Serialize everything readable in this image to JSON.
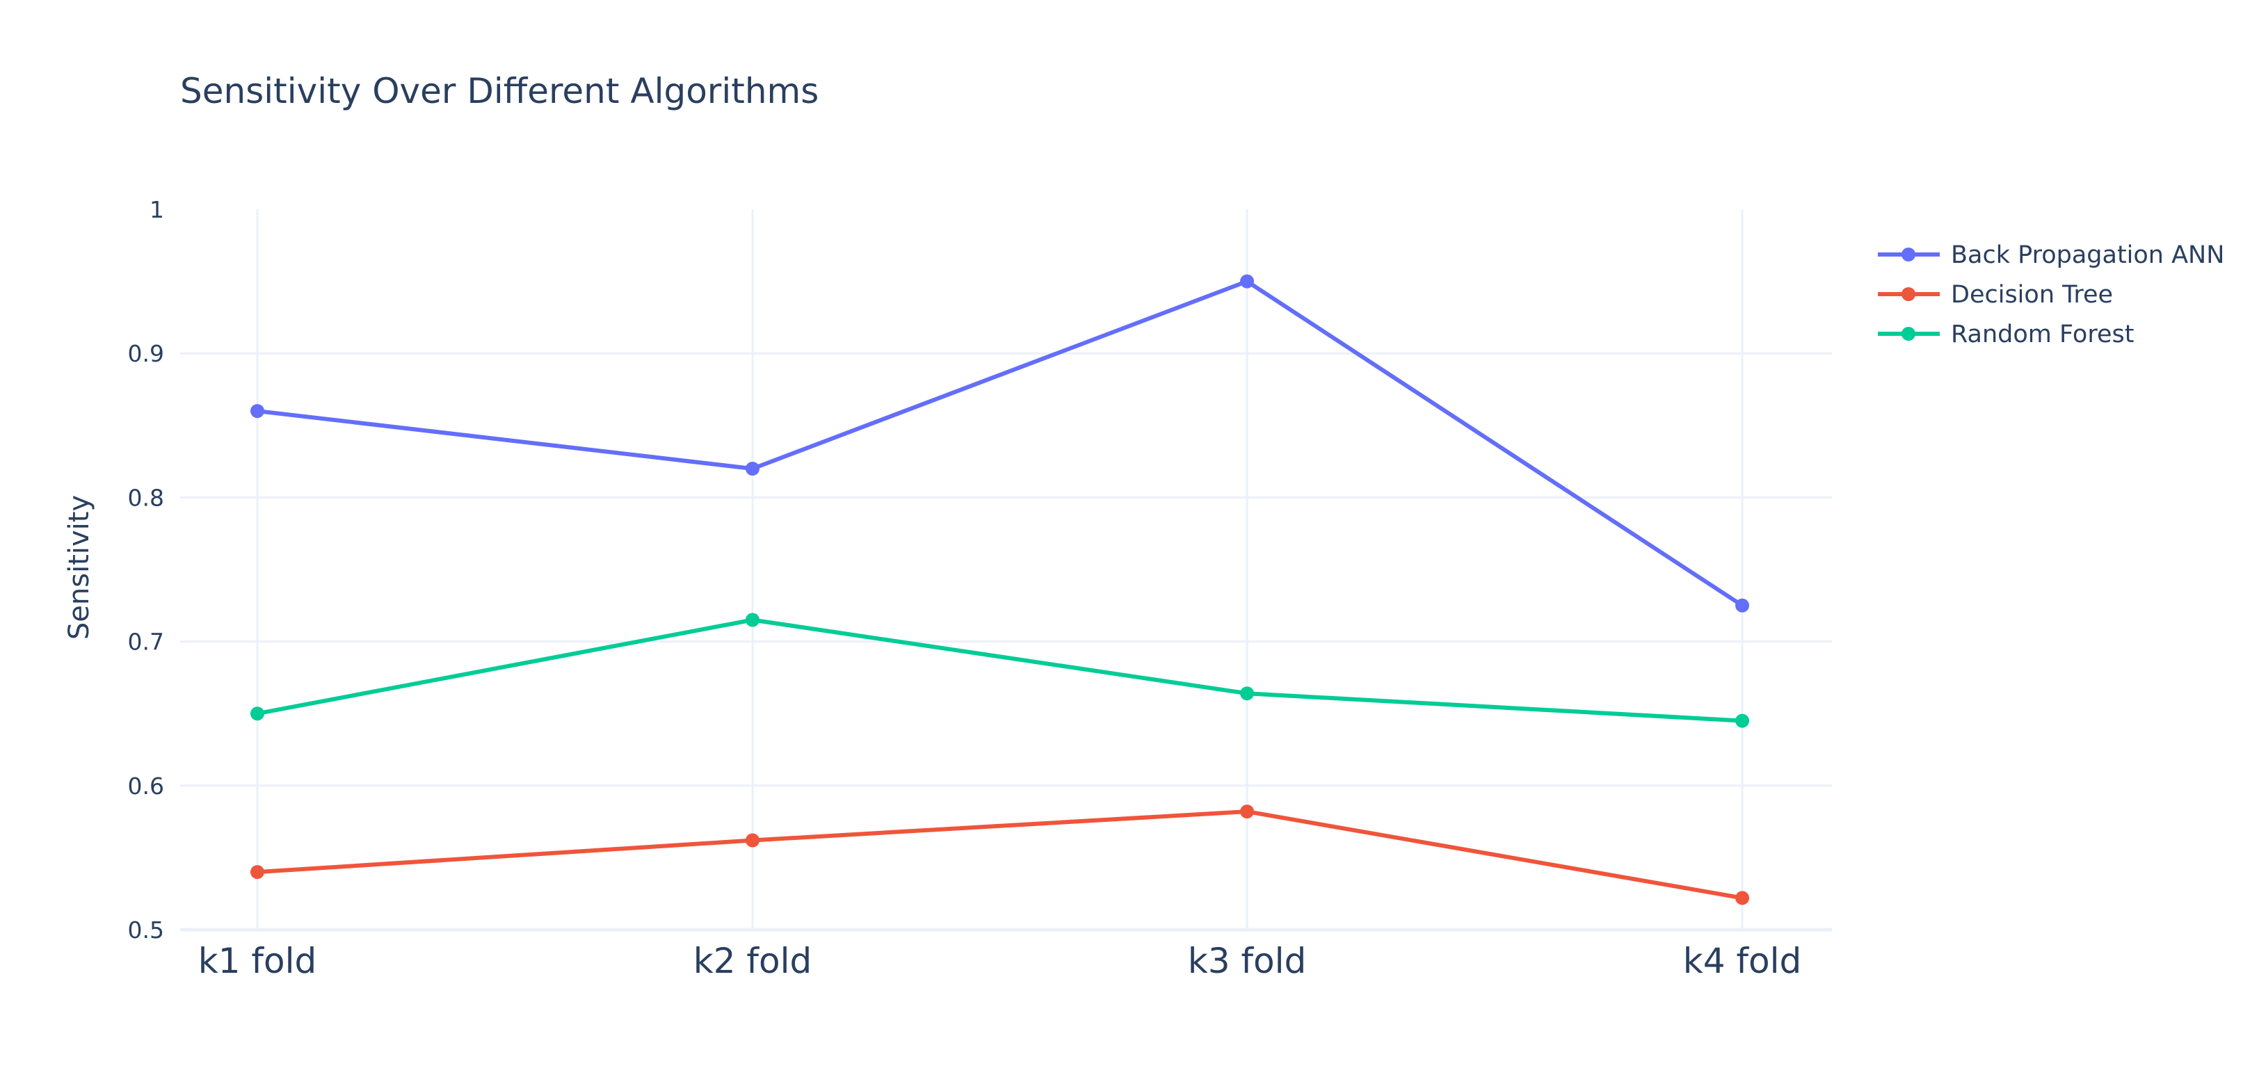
{
  "chart_data": {
    "type": "line",
    "title": "Sensitivity Over Different Algorithms",
    "xlabel": "",
    "ylabel": "Sensitivity",
    "categories": [
      "k1 fold",
      "k2 fold",
      "k3 fold",
      "k4 fold"
    ],
    "ylim": [
      0.5,
      1
    ],
    "y_ticks": [
      0.5,
      0.6,
      0.7,
      0.8,
      0.9,
      1
    ],
    "y_tick_labels": [
      "0.5",
      "0.6",
      "0.7",
      "0.8",
      "0.9",
      "1"
    ],
    "grid": true,
    "legend_position": "top-right",
    "series": [
      {
        "name": "Back Propagation ANN",
        "color": "#636efa",
        "values": [
          0.86,
          0.82,
          0.95,
          0.725
        ]
      },
      {
        "name": "Decision Tree",
        "color": "#ef553b",
        "values": [
          0.54,
          0.562,
          0.582,
          0.522
        ]
      },
      {
        "name": "Random Forest",
        "color": "#00cc96",
        "values": [
          0.65,
          0.715,
          0.664,
          0.645
        ]
      }
    ]
  }
}
